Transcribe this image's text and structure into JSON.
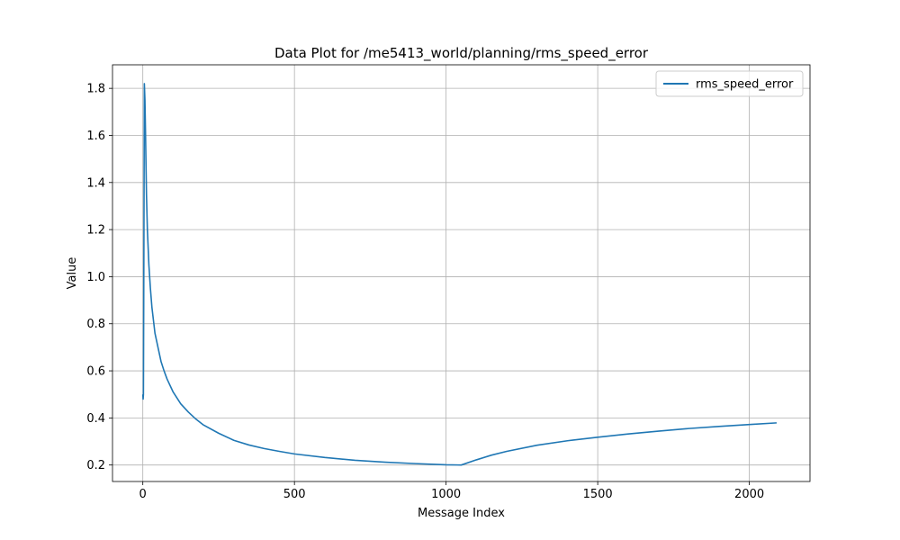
{
  "chart_data": {
    "type": "line",
    "title": "Data Plot for /me5413_world/planning/rms_speed_error",
    "xlabel": "Message Index",
    "ylabel": "Value",
    "xlim": [
      -100,
      2200
    ],
    "ylim": [
      0.13,
      1.9
    ],
    "xticks": [
      0,
      500,
      1000,
      1500,
      2000
    ],
    "yticks": [
      0.2,
      0.4,
      0.6,
      0.8,
      1.0,
      1.2,
      1.4,
      1.6,
      1.8
    ],
    "grid": true,
    "legend_position": "upper-right",
    "series": [
      {
        "name": "rms_speed_error",
        "color": "#1f77b4",
        "x": [
          0,
          1,
          2,
          3,
          5,
          7,
          9,
          12,
          15,
          20,
          25,
          30,
          40,
          50,
          60,
          70,
          80,
          100,
          125,
          150,
          175,
          200,
          250,
          300,
          350,
          400,
          450,
          500,
          600,
          700,
          800,
          900,
          1000,
          1050,
          1100,
          1150,
          1200,
          1300,
          1400,
          1500,
          1600,
          1700,
          1800,
          1900,
          2000,
          2090
        ],
        "y": [
          0.5,
          0.48,
          0.5,
          0.9,
          1.82,
          1.75,
          1.6,
          1.35,
          1.2,
          1.05,
          0.95,
          0.87,
          0.76,
          0.7,
          0.64,
          0.6,
          0.565,
          0.51,
          0.46,
          0.425,
          0.395,
          0.37,
          0.335,
          0.305,
          0.285,
          0.27,
          0.258,
          0.247,
          0.232,
          0.22,
          0.212,
          0.206,
          0.201,
          0.2,
          0.222,
          0.242,
          0.258,
          0.284,
          0.303,
          0.318,
          0.332,
          0.344,
          0.355,
          0.364,
          0.372,
          0.379
        ]
      }
    ]
  }
}
